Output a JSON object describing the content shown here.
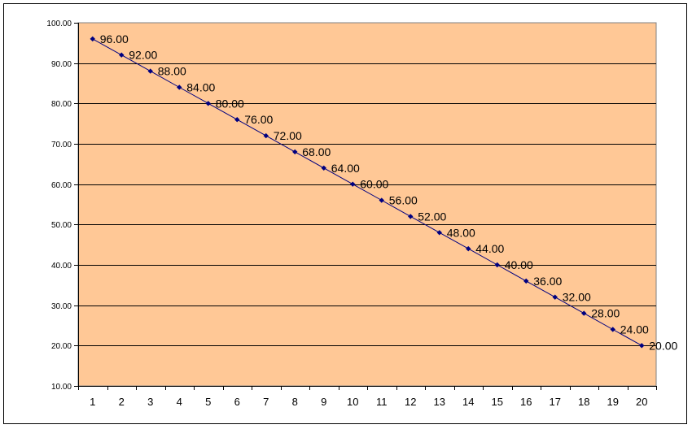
{
  "chart_data": {
    "type": "line",
    "title": "",
    "xlabel": "",
    "ylabel": "",
    "categories": [
      "1",
      "2",
      "3",
      "4",
      "5",
      "6",
      "7",
      "8",
      "9",
      "10",
      "11",
      "12",
      "13",
      "14",
      "15",
      "16",
      "17",
      "18",
      "19",
      "20"
    ],
    "series": [
      {
        "values": [
          96,
          92,
          88,
          84,
          80,
          76,
          72,
          68,
          64,
          60,
          56,
          52,
          48,
          44,
          40,
          36,
          32,
          28,
          24,
          20
        ],
        "data_labels": [
          "96.00",
          "92.00",
          "88.00",
          "84.00",
          "80.00",
          "76.00",
          "72.00",
          "68.00",
          "64.00",
          "60.00",
          "56.00",
          "52.00",
          "48.00",
          "44.00",
          "40.00",
          "36.00",
          "32.00",
          "28.00",
          "24.00",
          "20.00"
        ]
      }
    ],
    "ylim": [
      10,
      100
    ],
    "y_ticks": [
      10,
      20,
      30,
      40,
      50,
      60,
      70,
      80,
      90,
      100
    ],
    "y_tick_labels": [
      "10.00",
      "20.00",
      "30.00",
      "40.00",
      "50.00",
      "60.00",
      "70.00",
      "80.00",
      "90.00",
      "100.00"
    ],
    "grid": "horizontal",
    "legend": "none",
    "colors": {
      "plot_background": "#FFC896",
      "gridline": "#000000",
      "line": "#000080",
      "marker": "#000080"
    }
  }
}
